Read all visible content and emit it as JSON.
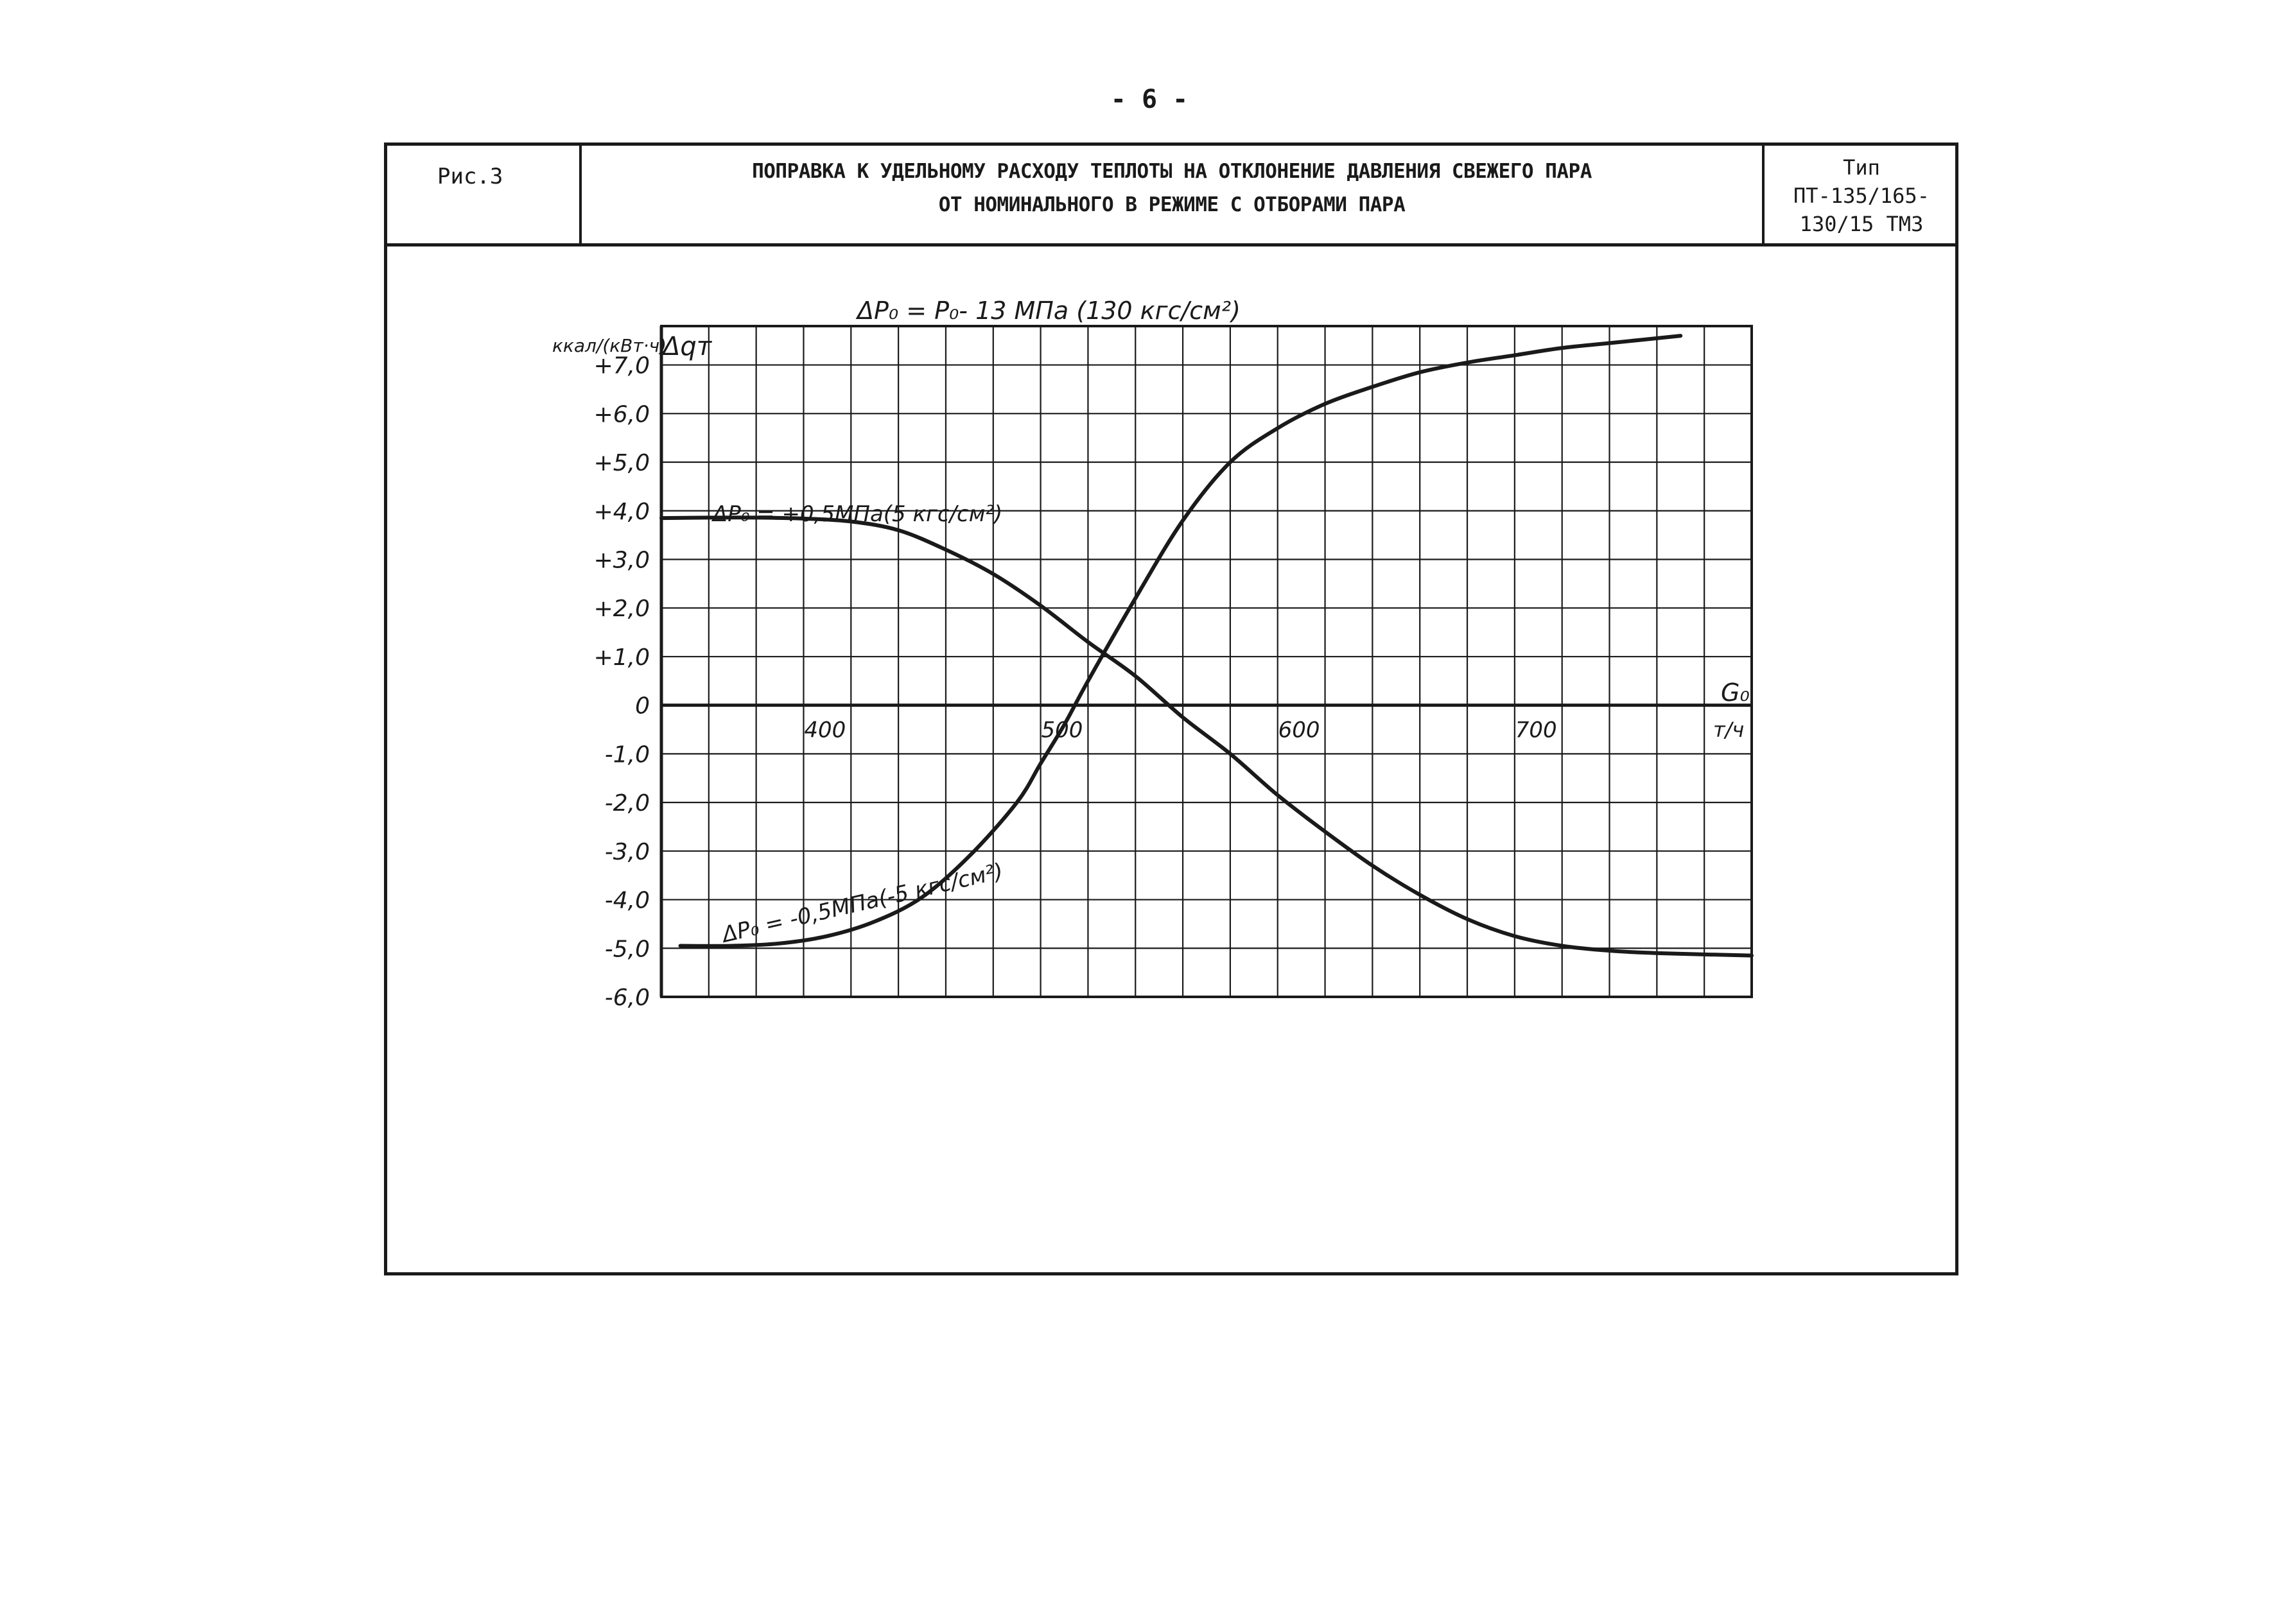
{
  "page_number": "- 6 -",
  "header": {
    "figure_label": "Рис.3",
    "title_line1": "ПОПРАВКА К УДЕЛЬНОМУ РАСХОДУ ТЕПЛОТЫ НА ОТКЛОНЕНИЕ ДАВЛЕНИЯ СВЕЖЕГО ПАРА",
    "title_line2": "ОТ НОМИНАЛЬНОГО В РЕЖИМЕ С ОТБОРАМИ ПАРА",
    "type_label": "Тип",
    "type_line1": "ПТ-135/165-",
    "type_line2": "130/15  ТМЗ"
  },
  "chart_data": {
    "type": "line",
    "title": "ΔP₀ = P₀- 13 МПа (130 кгс/см²)",
    "ylabel": "Δqт",
    "yunit": "ккал/(кВт·ч)",
    "xlabel": "G₀",
    "xunit": "т/ч",
    "xlim": [
      320,
      780
    ],
    "ylim": [
      -6.0,
      7.8
    ],
    "grid": true,
    "x_ticks": [
      "400",
      "500",
      "600",
      "700"
    ],
    "x_tick_values": [
      400,
      500,
      600,
      700
    ],
    "y_ticks": [
      "+7,0",
      "+6,0",
      "+5,0",
      "+4,0",
      "+3,0",
      "+2,0",
      "+1,0",
      "0",
      "-1,0",
      "-2,0",
      "-3,0",
      "-4,0",
      "-5,0",
      "-6,0"
    ],
    "y_tick_values": [
      7,
      6,
      5,
      4,
      3,
      2,
      1,
      0,
      -1,
      -2,
      -3,
      -4,
      -5,
      -6
    ],
    "series": [
      {
        "name": "ΔP₀ = +0,5 МПа (5 кгс/см²)",
        "x": [
          320,
          340,
          360,
          380,
          400,
          420,
          440,
          460,
          480,
          500,
          520,
          540,
          560,
          580,
          600,
          620,
          640,
          660,
          680,
          700,
          720,
          740,
          780
        ],
        "y": [
          3.85,
          3.86,
          3.86,
          3.84,
          3.78,
          3.6,
          3.2,
          2.7,
          2.05,
          1.3,
          0.6,
          -0.25,
          -1.0,
          -1.85,
          -2.6,
          -3.3,
          -3.9,
          -4.4,
          -4.75,
          -4.95,
          -5.05,
          -5.1,
          -5.15
        ]
      },
      {
        "name": "ΔP₀ = -0,5 МПа (-5 кгс/см²)",
        "x": [
          328,
          350,
          370,
          390,
          410,
          430,
          450,
          470,
          480,
          490,
          500,
          520,
          540,
          560,
          580,
          600,
          620,
          640,
          660,
          680,
          700,
          720,
          750
        ],
        "y": [
          -4.95,
          -4.95,
          -4.9,
          -4.75,
          -4.45,
          -3.95,
          -3.1,
          -2.0,
          -1.2,
          -0.4,
          0.5,
          2.2,
          3.8,
          5.0,
          5.7,
          6.2,
          6.55,
          6.85,
          7.05,
          7.2,
          7.35,
          7.45,
          7.6
        ]
      }
    ],
    "annotations": {
      "plus_label": "ΔP₀ = +0,5МПа(5 кгс/см²)",
      "minus_label": "ΔP₀ = -0,5МПа(-5 кгс/см²)"
    }
  }
}
